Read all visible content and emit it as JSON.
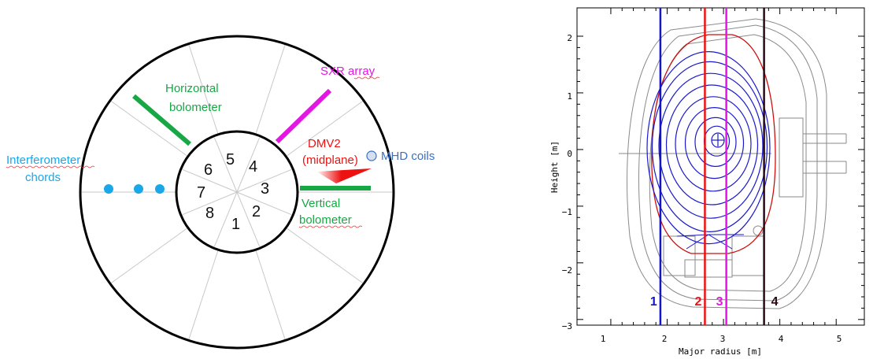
{
  "left_diagram": {
    "sector_numbers": [
      "1",
      "2",
      "3",
      "4",
      "5",
      "6",
      "7",
      "8"
    ],
    "labels": {
      "horizontal_bolometer": [
        "Horizontal",
        "bolometer"
      ],
      "sxr_array": "SXR array",
      "dmv2": [
        "DMV2",
        "(midplane)"
      ],
      "mhd_coils": "MHD coils",
      "interferometer": [
        "Interferometer",
        "chords"
      ],
      "vertical_bolometer": [
        "Vertical",
        "bolometer"
      ]
    },
    "colors": {
      "bolometer": "#17a845",
      "sxr": "#e316e3",
      "dmv2": "#ee1111",
      "mhd": "#3b6fc4",
      "interferometer": "#1aa7ea"
    }
  },
  "right_plot": {
    "xlabel": "Major radius [m]",
    "ylabel": "Height [m]",
    "x_ticks": [
      "1",
      "2",
      "3",
      "4",
      "5"
    ],
    "y_ticks": [
      "2",
      "1",
      "0",
      "−1",
      "−2",
      "−3"
    ],
    "chord_labels": [
      "1",
      "2",
      "3",
      "4"
    ],
    "chord_colors": [
      "#1515c8",
      "#ee1111",
      "#e316e3",
      "#2a0a18"
    ]
  },
  "chart_data": {
    "type": "line",
    "xlabel": "Major radius [m]",
    "ylabel": "Height [m]",
    "xlim": [
      0.4,
      5.5
    ],
    "ylim": [
      -3.1,
      2.5
    ],
    "grid": false,
    "series": [
      {
        "name": "1",
        "x": [
          1.88,
          1.88
        ],
        "y": [
          -3.1,
          2.5
        ]
      },
      {
        "name": "2",
        "x": [
          2.67,
          2.67
        ],
        "y": [
          -3.1,
          2.5
        ]
      },
      {
        "name": "3",
        "x": [
          3.05,
          3.05
        ],
        "y": [
          -3.1,
          2.5
        ]
      },
      {
        "name": "4",
        "x": [
          3.72,
          3.72
        ],
        "y": [
          -3.1,
          2.5
        ]
      }
    ]
  }
}
